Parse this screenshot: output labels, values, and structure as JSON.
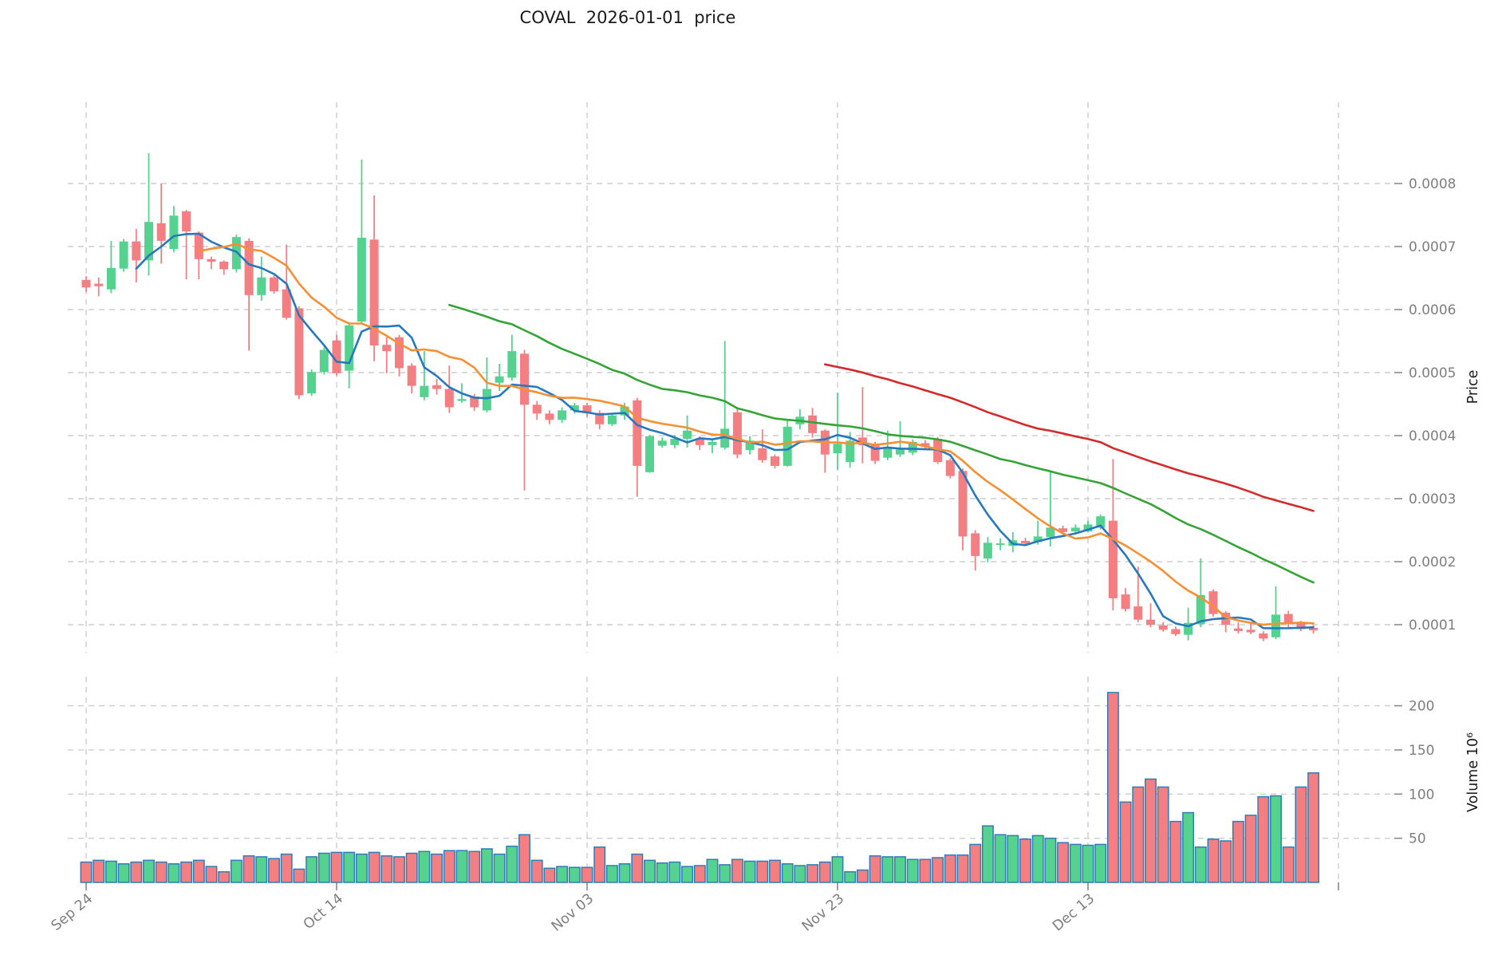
{
  "title": "COVAL  2026-01-01  price",
  "chart_data": {
    "type": "candlestick",
    "title": "COVAL  2026-01-01  price",
    "price_axis": {
      "label": "Price",
      "ticks": [
        0.0001,
        0.0002,
        0.0003,
        0.0004,
        0.0005,
        0.0006,
        0.0007,
        0.0008
      ]
    },
    "volume_axis": {
      "label": "Volume 10⁶",
      "ticks": [
        50,
        100,
        150,
        200
      ]
    },
    "x_ticks": [
      {
        "index": 0,
        "label": "Sep 24"
      },
      {
        "index": 20,
        "label": "Oct 14"
      },
      {
        "index": 40,
        "label": "Nov 03"
      },
      {
        "index": 60,
        "label": "Nov 23"
      },
      {
        "index": 80,
        "label": "Dec 13"
      },
      {
        "index": 100,
        "label": ""
      }
    ],
    "price_multiplier": 0.0001,
    "volume_multiplier": 1000000,
    "moving_averages": [
      {
        "window": 5,
        "color": "#2878be"
      },
      {
        "window": 10,
        "color": "#f78f33"
      },
      {
        "window": 30,
        "color": "#36a336"
      },
      {
        "window": 60,
        "color": "#d42a2a"
      }
    ],
    "colors": {
      "up": "#55d28f",
      "down": "#f47f83",
      "volume_edge": "#2e7db9",
      "grid": "#cdcdcd",
      "tick_text": "#7e7e7e",
      "tick_mark": "#8a8a8a"
    },
    "legend_position": "none",
    "grid": true,
    "candles_ohlcv": [
      [
        6.47,
        6.53,
        6.28,
        6.35,
        23
      ],
      [
        6.41,
        6.51,
        6.21,
        6.37,
        25
      ],
      [
        6.32,
        7.09,
        6.26,
        6.66,
        24
      ],
      [
        6.65,
        7.12,
        6.6,
        7.08,
        21
      ],
      [
        7.08,
        7.28,
        6.43,
        6.78,
        23
      ],
      [
        6.78,
        8.48,
        6.54,
        7.39,
        25
      ],
      [
        7.37,
        8.0,
        6.73,
        7.09,
        23
      ],
      [
        6.96,
        7.64,
        6.91,
        7.49,
        21
      ],
      [
        7.56,
        7.58,
        6.48,
        7.24,
        23
      ],
      [
        7.22,
        7.24,
        6.48,
        6.8,
        25
      ],
      [
        6.8,
        6.84,
        6.64,
        6.76,
        18
      ],
      [
        6.76,
        6.78,
        6.55,
        6.64,
        12
      ],
      [
        6.64,
        7.19,
        6.59,
        7.15,
        25
      ],
      [
        7.09,
        7.13,
        5.35,
        6.23,
        30
      ],
      [
        6.23,
        6.84,
        6.14,
        6.51,
        29
      ],
      [
        6.51,
        6.54,
        6.25,
        6.29,
        27
      ],
      [
        6.32,
        7.03,
        5.84,
        5.87,
        32
      ],
      [
        6.02,
        6.05,
        4.58,
        4.64,
        15
      ],
      [
        4.67,
        5.05,
        4.63,
        5.01,
        29
      ],
      [
        5.01,
        5.4,
        4.97,
        5.36,
        33
      ],
      [
        5.51,
        5.6,
        4.95,
        4.99,
        34
      ],
      [
        5.03,
        5.8,
        4.75,
        5.75,
        34
      ],
      [
        5.81,
        8.38,
        5.77,
        7.14,
        32
      ],
      [
        7.11,
        7.81,
        5.18,
        5.43,
        34
      ],
      [
        5.44,
        5.56,
        4.99,
        5.34,
        30
      ],
      [
        5.56,
        5.6,
        4.94,
        5.07,
        29
      ],
      [
        5.11,
        5.15,
        4.67,
        4.79,
        33
      ],
      [
        4.61,
        5.34,
        4.56,
        4.79,
        35
      ],
      [
        4.8,
        4.9,
        4.65,
        4.74,
        32
      ],
      [
        4.74,
        5.11,
        4.36,
        4.45,
        36
      ],
      [
        4.55,
        4.83,
        4.52,
        4.58,
        36
      ],
      [
        4.62,
        4.66,
        4.39,
        4.45,
        35
      ],
      [
        4.4,
        5.24,
        4.37,
        4.74,
        38
      ],
      [
        4.84,
        5.14,
        4.71,
        4.94,
        32
      ],
      [
        4.92,
        5.6,
        4.87,
        5.34,
        41
      ],
      [
        5.3,
        5.36,
        3.13,
        4.49,
        54
      ],
      [
        4.49,
        4.55,
        4.25,
        4.35,
        25
      ],
      [
        4.35,
        4.4,
        4.18,
        4.25,
        16
      ],
      [
        4.25,
        4.45,
        4.2,
        4.4,
        18
      ],
      [
        4.4,
        4.52,
        4.35,
        4.48,
        17
      ],
      [
        4.48,
        4.52,
        4.3,
        4.36,
        17
      ],
      [
        4.36,
        4.4,
        4.1,
        4.18,
        40
      ],
      [
        4.18,
        4.36,
        4.15,
        4.32,
        19
      ],
      [
        4.32,
        4.52,
        4.25,
        4.46,
        21
      ],
      [
        4.56,
        4.6,
        3.03,
        3.52,
        32
      ],
      [
        3.42,
        4.01,
        3.41,
        3.99,
        25
      ],
      [
        3.84,
        3.97,
        3.81,
        3.92,
        22
      ],
      [
        3.85,
        4.01,
        3.8,
        3.95,
        23
      ],
      [
        3.95,
        4.32,
        3.81,
        4.08,
        18
      ],
      [
        3.94,
        3.99,
        3.77,
        3.85,
        19
      ],
      [
        3.85,
        3.95,
        3.72,
        3.9,
        26
      ],
      [
        3.81,
        5.5,
        3.78,
        4.11,
        20
      ],
      [
        4.37,
        4.44,
        3.64,
        3.7,
        26
      ],
      [
        3.77,
        3.99,
        3.7,
        3.92,
        24
      ],
      [
        3.8,
        4.1,
        3.57,
        3.61,
        24
      ],
      [
        3.67,
        3.7,
        3.48,
        3.52,
        25
      ],
      [
        3.52,
        4.24,
        3.51,
        4.14,
        21
      ],
      [
        4.18,
        4.42,
        4.1,
        4.3,
        19
      ],
      [
        4.32,
        4.44,
        3.97,
        4.04,
        20
      ],
      [
        4.08,
        4.1,
        3.41,
        3.7,
        23
      ],
      [
        3.72,
        4.68,
        3.46,
        3.87,
        29
      ],
      [
        3.58,
        4.06,
        3.49,
        3.92,
        12
      ],
      [
        3.97,
        4.77,
        3.56,
        3.85,
        14
      ],
      [
        3.85,
        3.9,
        3.55,
        3.6,
        30
      ],
      [
        3.65,
        4.08,
        3.61,
        3.82,
        29
      ],
      [
        3.7,
        4.23,
        3.66,
        3.78,
        29
      ],
      [
        3.73,
        3.94,
        3.69,
        3.9,
        26
      ],
      [
        3.88,
        3.93,
        3.77,
        3.82,
        26
      ],
      [
        3.95,
        3.98,
        3.55,
        3.58,
        28
      ],
      [
        3.61,
        3.64,
        3.32,
        3.36,
        31
      ],
      [
        3.44,
        3.48,
        2.18,
        2.4,
        31
      ],
      [
        2.45,
        2.5,
        1.86,
        2.09,
        43
      ],
      [
        2.05,
        2.39,
        1.99,
        2.3,
        64
      ],
      [
        2.27,
        2.37,
        2.18,
        2.29,
        54
      ],
      [
        2.25,
        2.47,
        2.15,
        2.34,
        53
      ],
      [
        2.33,
        2.38,
        2.25,
        2.29,
        49
      ],
      [
        2.31,
        2.65,
        2.27,
        2.4,
        53
      ],
      [
        2.39,
        3.42,
        2.24,
        2.54,
        50
      ],
      [
        2.53,
        2.57,
        2.43,
        2.47,
        45
      ],
      [
        2.48,
        2.59,
        2.45,
        2.54,
        43
      ],
      [
        2.48,
        2.65,
        2.47,
        2.59,
        42
      ],
      [
        2.54,
        2.75,
        2.51,
        2.72,
        43
      ],
      [
        2.65,
        3.63,
        1.23,
        1.42,
        215
      ],
      [
        1.48,
        1.58,
        1.21,
        1.25,
        91
      ],
      [
        1.29,
        1.92,
        1.04,
        1.08,
        108
      ],
      [
        1.08,
        1.34,
        0.96,
        1.0,
        117
      ],
      [
        0.99,
        1.04,
        0.89,
        0.92,
        108
      ],
      [
        0.93,
        0.97,
        0.82,
        0.85,
        69
      ],
      [
        0.84,
        1.27,
        0.75,
        1.03,
        79
      ],
      [
        1.01,
        2.05,
        0.96,
        1.47,
        40
      ],
      [
        1.53,
        1.56,
        1.13,
        1.17,
        49
      ],
      [
        1.19,
        1.22,
        0.88,
        1.0,
        47
      ],
      [
        0.94,
        1.04,
        0.86,
        0.9,
        69
      ],
      [
        0.92,
        1.02,
        0.85,
        0.88,
        76
      ],
      [
        0.86,
        0.9,
        0.74,
        0.78,
        97
      ],
      [
        0.8,
        1.61,
        0.77,
        1.16,
        98
      ],
      [
        1.17,
        1.22,
        0.96,
        1.01,
        40
      ],
      [
        1.02,
        1.06,
        0.9,
        0.93,
        108
      ],
      [
        0.95,
        0.99,
        0.86,
        0.91,
        124
      ]
    ]
  }
}
